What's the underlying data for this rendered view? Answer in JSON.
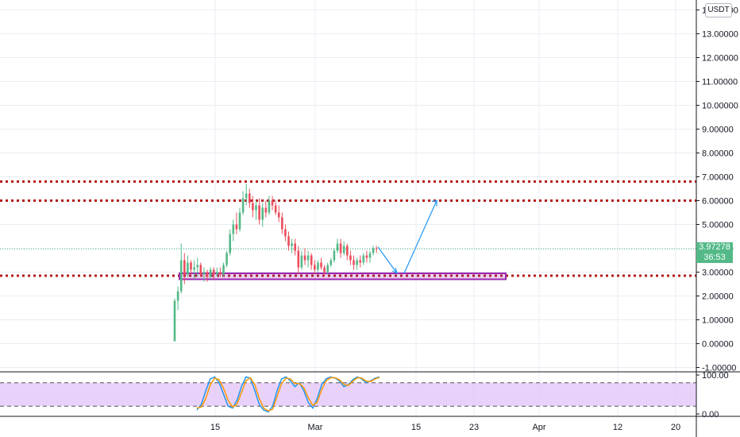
{
  "ui": {
    "currency_button": "USDT",
    "last_price": "3.97278",
    "countdown": "36:53",
    "colors": {
      "up": "#53b987",
      "down": "#eb4d5c",
      "grid": "#e9eef3",
      "level_line": "#b71c1c",
      "zone": "#9c27b0",
      "arrow": "#2196f3",
      "oscillator_band": "#e1c3f7"
    }
  },
  "chart_data": [
    {
      "type": "candlestick",
      "title": "",
      "xlabel": "",
      "ylabel": "",
      "ylim": [
        -1.3,
        14.3
      ],
      "yticks": [
        "-1.00000",
        "0.00000",
        "1.00000",
        "2.00000",
        "3.00000",
        "4.00000",
        "5.00000",
        "6.00000",
        "7.00000",
        "8.00000",
        "9.00000",
        "10.00000",
        "11.00000",
        "12.00000",
        "13.00000",
        "14.00000"
      ],
      "xticks": [
        "15",
        "Mar",
        "15",
        "23",
        "Apr",
        "12",
        "20"
      ],
      "grid": true,
      "levels": [
        6.8,
        6.0,
        2.85
      ],
      "support_zone": [
        2.7,
        2.95
      ],
      "projection": [
        [
          4.05,
          2.95
        ],
        [
          2.95,
          6.0
        ]
      ],
      "ohlc": [
        [
          0.1,
          1.9,
          0.1,
          1.8
        ],
        [
          1.8,
          2.4,
          1.4,
          2.2
        ],
        [
          2.2,
          4.2,
          2.1,
          3.5
        ],
        [
          3.5,
          3.8,
          2.5,
          2.9
        ],
        [
          2.9,
          3.7,
          2.8,
          3.4
        ],
        [
          3.4,
          3.5,
          2.9,
          3.1
        ],
        [
          3.1,
          3.5,
          2.7,
          3.2
        ],
        [
          3.2,
          3.6,
          2.8,
          3.3
        ],
        [
          3.3,
          3.4,
          2.8,
          2.9
        ],
        [
          2.9,
          3.2,
          2.6,
          3.0
        ],
        [
          3.0,
          3.1,
          2.6,
          2.8
        ],
        [
          2.8,
          3.2,
          2.7,
          3.1
        ],
        [
          3.1,
          3.2,
          2.7,
          2.9
        ],
        [
          2.9,
          3.2,
          2.8,
          3.0
        ],
        [
          3.0,
          3.2,
          2.8,
          2.9
        ],
        [
          2.9,
          3.4,
          2.8,
          3.3
        ],
        [
          3.3,
          3.9,
          3.2,
          3.8
        ],
        [
          3.8,
          4.8,
          3.7,
          4.6
        ],
        [
          4.6,
          5.2,
          4.3,
          5.0
        ],
        [
          5.0,
          5.5,
          4.6,
          4.8
        ],
        [
          4.8,
          5.7,
          4.7,
          5.5
        ],
        [
          5.5,
          6.4,
          5.4,
          6.1
        ],
        [
          6.1,
          6.7,
          5.8,
          6.3
        ],
        [
          6.3,
          6.5,
          5.7,
          5.9
        ],
        [
          5.9,
          6.2,
          5.3,
          5.6
        ],
        [
          5.6,
          6.0,
          5.2,
          5.8
        ],
        [
          5.8,
          6.1,
          5.0,
          5.2
        ],
        [
          5.2,
          5.9,
          4.9,
          5.7
        ],
        [
          5.7,
          6.0,
          5.3,
          5.5
        ],
        [
          5.5,
          6.2,
          5.4,
          6.0
        ],
        [
          6.0,
          6.2,
          5.6,
          5.8
        ],
        [
          5.8,
          6.0,
          5.4,
          5.5
        ],
        [
          5.5,
          5.8,
          5.1,
          5.3
        ],
        [
          5.3,
          5.5,
          4.6,
          4.8
        ],
        [
          4.8,
          5.0,
          4.3,
          4.5
        ],
        [
          4.5,
          4.7,
          3.9,
          4.1
        ],
        [
          4.1,
          4.4,
          3.8,
          4.2
        ],
        [
          4.2,
          4.4,
          3.7,
          3.9
        ],
        [
          3.9,
          4.1,
          2.9,
          3.2
        ],
        [
          3.2,
          3.9,
          3.1,
          3.7
        ],
        [
          3.7,
          4.0,
          3.3,
          3.5
        ],
        [
          3.5,
          3.9,
          3.2,
          3.7
        ],
        [
          3.7,
          3.8,
          3.1,
          3.3
        ],
        [
          3.3,
          3.5,
          2.9,
          3.1
        ],
        [
          3.1,
          3.5,
          3.0,
          3.4
        ],
        [
          3.4,
          3.6,
          3.1,
          3.2
        ],
        [
          3.2,
          3.3,
          2.8,
          3.0
        ],
        [
          3.0,
          3.4,
          2.9,
          3.3
        ],
        [
          3.3,
          3.6,
          3.2,
          3.5
        ],
        [
          3.5,
          4.0,
          3.4,
          3.9
        ],
        [
          3.9,
          4.4,
          3.8,
          4.2
        ],
        [
          4.2,
          4.4,
          3.6,
          3.8
        ],
        [
          3.8,
          4.3,
          3.7,
          4.1
        ],
        [
          4.1,
          4.2,
          3.5,
          3.7
        ],
        [
          3.7,
          3.9,
          3.3,
          3.5
        ],
        [
          3.5,
          3.7,
          3.1,
          3.3
        ],
        [
          3.3,
          3.6,
          3.1,
          3.5
        ],
        [
          3.5,
          3.7,
          3.2,
          3.4
        ],
        [
          3.4,
          3.8,
          3.3,
          3.7
        ],
        [
          3.7,
          3.9,
          3.4,
          3.6
        ],
        [
          3.6,
          3.9,
          3.4,
          3.8
        ],
        [
          3.8,
          4.1,
          3.7,
          4.0
        ],
        [
          4.0,
          4.1,
          3.8,
          3.97
        ]
      ]
    },
    {
      "type": "line",
      "title": "",
      "ylim": [
        0,
        100
      ],
      "yticks": [
        "100.00",
        "0.00"
      ],
      "bands": [
        20,
        80
      ],
      "series": [
        {
          "values": [
            10,
            25,
            60,
            90,
            95,
            80,
            50,
            20,
            15,
            35,
            70,
            95,
            92,
            60,
            25,
            10,
            5,
            20,
            60,
            90,
            95,
            85,
            70,
            80,
            60,
            30,
            15,
            40,
            75,
            90,
            95,
            92,
            85,
            70,
            75,
            88,
            95,
            90,
            80,
            85,
            92,
            95
          ]
        },
        {
          "values": [
            15,
            18,
            40,
            75,
            92,
            88,
            65,
            35,
            18,
            25,
            55,
            85,
            93,
            75,
            40,
            15,
            8,
            12,
            45,
            78,
            92,
            90,
            78,
            78,
            68,
            42,
            22,
            30,
            62,
            85,
            93,
            93,
            88,
            76,
            73,
            84,
            93,
            92,
            84,
            83,
            90,
            94
          ]
        }
      ]
    }
  ]
}
